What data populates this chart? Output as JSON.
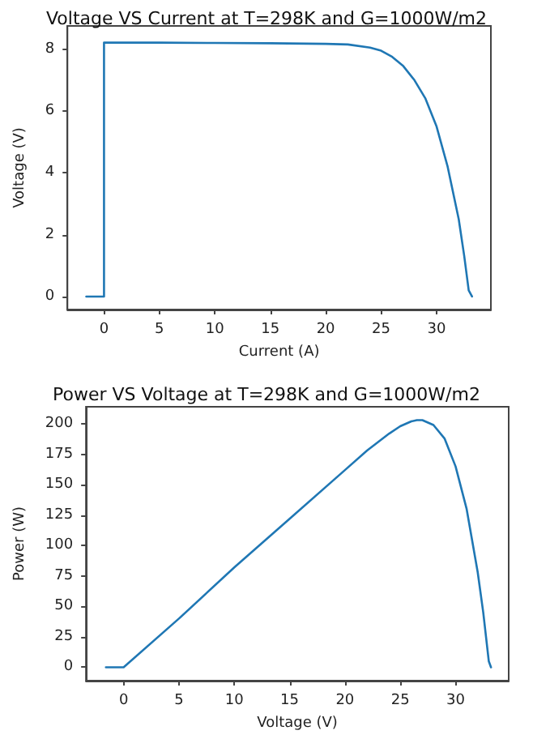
{
  "chart_data": [
    {
      "type": "line",
      "title": "Voltage VS Current at T=298K and G=1000W/m2",
      "xlabel": "Current (A)",
      "ylabel": "Voltage (V)",
      "xlim": [
        -3.3,
        34.9
      ],
      "ylim": [
        -0.42,
        8.75
      ],
      "xticks": [
        0,
        5,
        10,
        15,
        20,
        25,
        30
      ],
      "yticks": [
        0,
        2,
        4,
        6,
        8
      ],
      "grid": false,
      "marker": "none",
      "line_style": "solid",
      "series": [
        {
          "color": "#1f77b4",
          "x": [
            -1.6,
            0,
            0,
            5,
            10,
            15,
            20,
            22,
            24,
            25,
            26,
            27,
            28,
            29,
            30,
            31,
            32,
            32.5,
            32.9,
            33.2
          ],
          "values": [
            0,
            0,
            8.21,
            8.21,
            8.2,
            8.19,
            8.17,
            8.15,
            8.05,
            7.95,
            7.75,
            7.45,
            7.0,
            6.4,
            5.5,
            4.2,
            2.5,
            1.3,
            0.2,
            0
          ]
        }
      ]
    },
    {
      "type": "line",
      "title": "Power VS Voltage at T=298K and G=1000W/m2",
      "xlabel": "Voltage (V)",
      "ylabel": "Power (W)",
      "xlim": [
        -3.4,
        34.8
      ],
      "ylim": [
        -11,
        214
      ],
      "xticks": [
        0,
        5,
        10,
        15,
        20,
        25,
        30
      ],
      "yticks": [
        0,
        25,
        50,
        75,
        100,
        125,
        150,
        175,
        200
      ],
      "grid": false,
      "marker": "none",
      "line_style": "solid",
      "series": [
        {
          "color": "#1f77b4",
          "x": [
            -1.6,
            0,
            5,
            10,
            15,
            20,
            22,
            24,
            25,
            26,
            26.5,
            27,
            28,
            29,
            30,
            31,
            32,
            32.5,
            33,
            33.2
          ],
          "values": [
            0,
            0,
            40,
            82,
            122,
            162,
            178,
            192,
            198,
            202,
            203,
            203,
            199,
            188,
            165,
            130,
            78,
            45,
            5,
            0
          ]
        }
      ]
    }
  ]
}
